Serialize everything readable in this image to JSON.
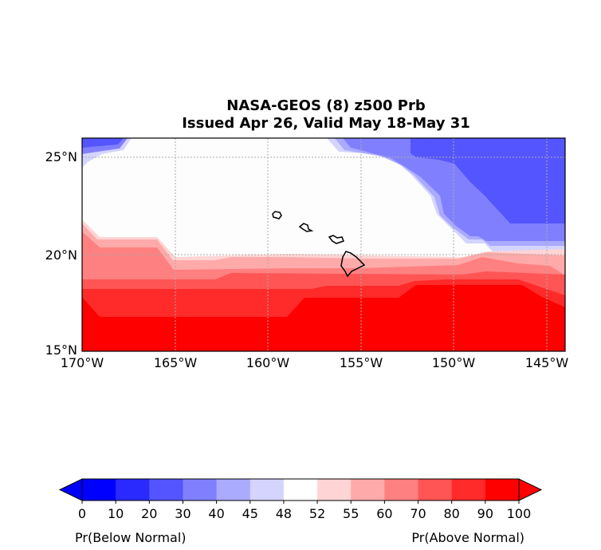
{
  "title_line1": "NASA-GEOS (8) z500 Prb",
  "title_line2": "Issued Apr 26, Valid May 18-May 31",
  "map": {
    "lon_ticks": [
      "170°W",
      "165°W",
      "160°W",
      "155°W",
      "150°W",
      "145°W"
    ],
    "lat_ticks": [
      "25°N",
      "20°N",
      "15°N"
    ],
    "lon_range": [
      -170,
      -144
    ],
    "lat_range": [
      15,
      26
    ],
    "gridlines": true,
    "region": "Hawaiian Islands"
  },
  "colorbar": {
    "ticks": [
      "0",
      "10",
      "20",
      "30",
      "40",
      "45",
      "48",
      "52",
      "55",
      "60",
      "70",
      "80",
      "90",
      "100"
    ],
    "colors": [
      "#0000ff",
      "#2a2aff",
      "#5555ff",
      "#8080ff",
      "#aaaaff",
      "#d4d4ff",
      "#ffffff",
      "#ffd4d4",
      "#ffaaaa",
      "#ff8080",
      "#ff5555",
      "#ff2a2a",
      "#ff0000"
    ],
    "label_left": "Pr(Below Normal)",
    "label_right": "Pr(Above Normal)"
  }
}
